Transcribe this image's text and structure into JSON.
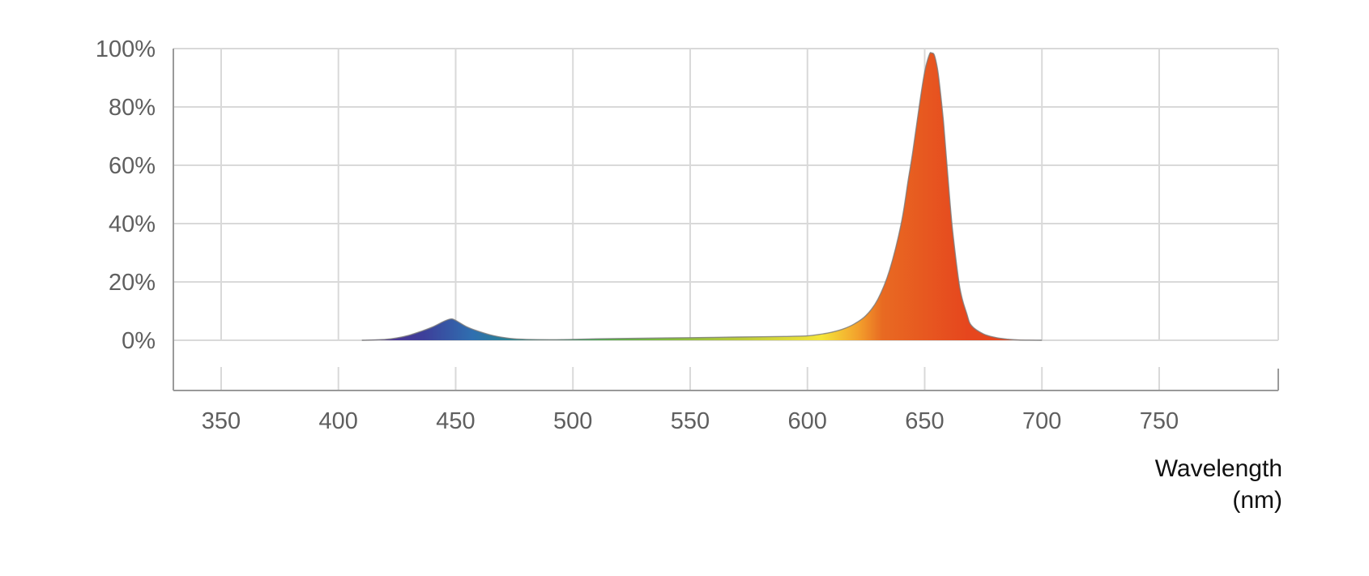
{
  "chart_data": {
    "type": "area",
    "title": "",
    "xlabel": [
      "Wavelength",
      "(nm)"
    ],
    "ylabel": "",
    "xlim": [
      330,
      790
    ],
    "ylim": [
      0,
      100
    ],
    "x_ticks": [
      350,
      400,
      450,
      500,
      550,
      600,
      650,
      700,
      750
    ],
    "x_tick_labels": [
      "350",
      "400",
      "450",
      "500",
      "550",
      "600",
      "650",
      "700",
      "750"
    ],
    "y_ticks": [
      0,
      20,
      40,
      60,
      80,
      100
    ],
    "y_tick_labels": [
      "0%",
      "20%",
      "40%",
      "60%",
      "80%",
      "100%"
    ],
    "grid": true,
    "legend": "none",
    "colors": {
      "grid": "#d9d9d9",
      "axis": "#9a9a9a",
      "outline": "#7a7a7a",
      "gradient": [
        "#5b2a8e",
        "#3d3f9a",
        "#2f6fb0",
        "#1f9a6a",
        "#58b043",
        "#b8c93a",
        "#f5e53a",
        "#f3a12c",
        "#e86a22",
        "#e6461e"
      ]
    },
    "series": [
      {
        "x": [
          410,
          420,
          425,
          430,
          435,
          440,
          445,
          448,
          450,
          455,
          460,
          465,
          470,
          475,
          480,
          490,
          500,
          510,
          520,
          530,
          540,
          550,
          560,
          570,
          580,
          590,
          600,
          605,
          610,
          615,
          620,
          625,
          630,
          635,
          640,
          643,
          645,
          648,
          650,
          652,
          653,
          654,
          655,
          656,
          658,
          660,
          662,
          665,
          668,
          670,
          675,
          680,
          685,
          690,
          700
        ],
        "y": [
          0,
          0.3,
          0.8,
          1.7,
          3.0,
          4.5,
          6.5,
          7.3,
          6.8,
          4.5,
          3.0,
          1.8,
          1.0,
          0.5,
          0.3,
          0.2,
          0.3,
          0.5,
          0.6,
          0.7,
          0.8,
          0.9,
          1.0,
          1.1,
          1.2,
          1.3,
          1.5,
          2.0,
          2.7,
          3.8,
          5.6,
          8.5,
          14,
          24,
          40,
          55,
          65,
          82,
          92,
          98,
          98.5,
          98,
          95,
          90,
          75,
          55,
          37,
          18,
          9,
          5,
          2.2,
          1.0,
          0.4,
          0.1,
          0
        ]
      }
    ]
  }
}
